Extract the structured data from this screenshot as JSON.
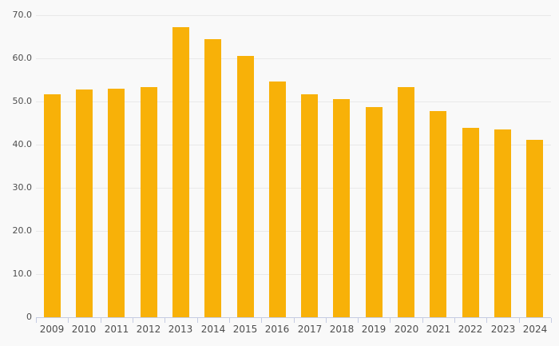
{
  "chart_data": {
    "type": "bar",
    "categories": [
      "2009",
      "2010",
      "2011",
      "2012",
      "2013",
      "2014",
      "2015",
      "2016",
      "2017",
      "2018",
      "2019",
      "2020",
      "2021",
      "2022",
      "2023",
      "2024"
    ],
    "values": [
      51.7,
      52.8,
      52.9,
      53.3,
      67.2,
      64.4,
      60.5,
      54.6,
      51.7,
      50.6,
      48.7,
      53.4,
      47.7,
      43.9,
      43.6,
      41.2
    ],
    "series": [
      {
        "name": "value",
        "values": [
          51.7,
          52.8,
          52.9,
          53.3,
          67.2,
          64.4,
          60.5,
          54.6,
          51.7,
          50.6,
          48.7,
          53.4,
          47.7,
          43.9,
          43.6,
          41.2
        ]
      }
    ],
    "title": "",
    "xlabel": "",
    "ylabel": "",
    "ylim": [
      0,
      70
    ],
    "ytick_step": 10,
    "ytick_labels": [
      "0",
      "10.0",
      "20.0",
      "30.0",
      "40.0",
      "50.0",
      "60.0",
      "70.0"
    ],
    "grid": true,
    "legend": false
  },
  "style": {
    "bar_color": "#f8b108",
    "background_color": "#f9f9f9",
    "gridline_color": "#e9e9e9",
    "axis_color": "#c5cce2",
    "label_color": "#4d4d4d"
  }
}
